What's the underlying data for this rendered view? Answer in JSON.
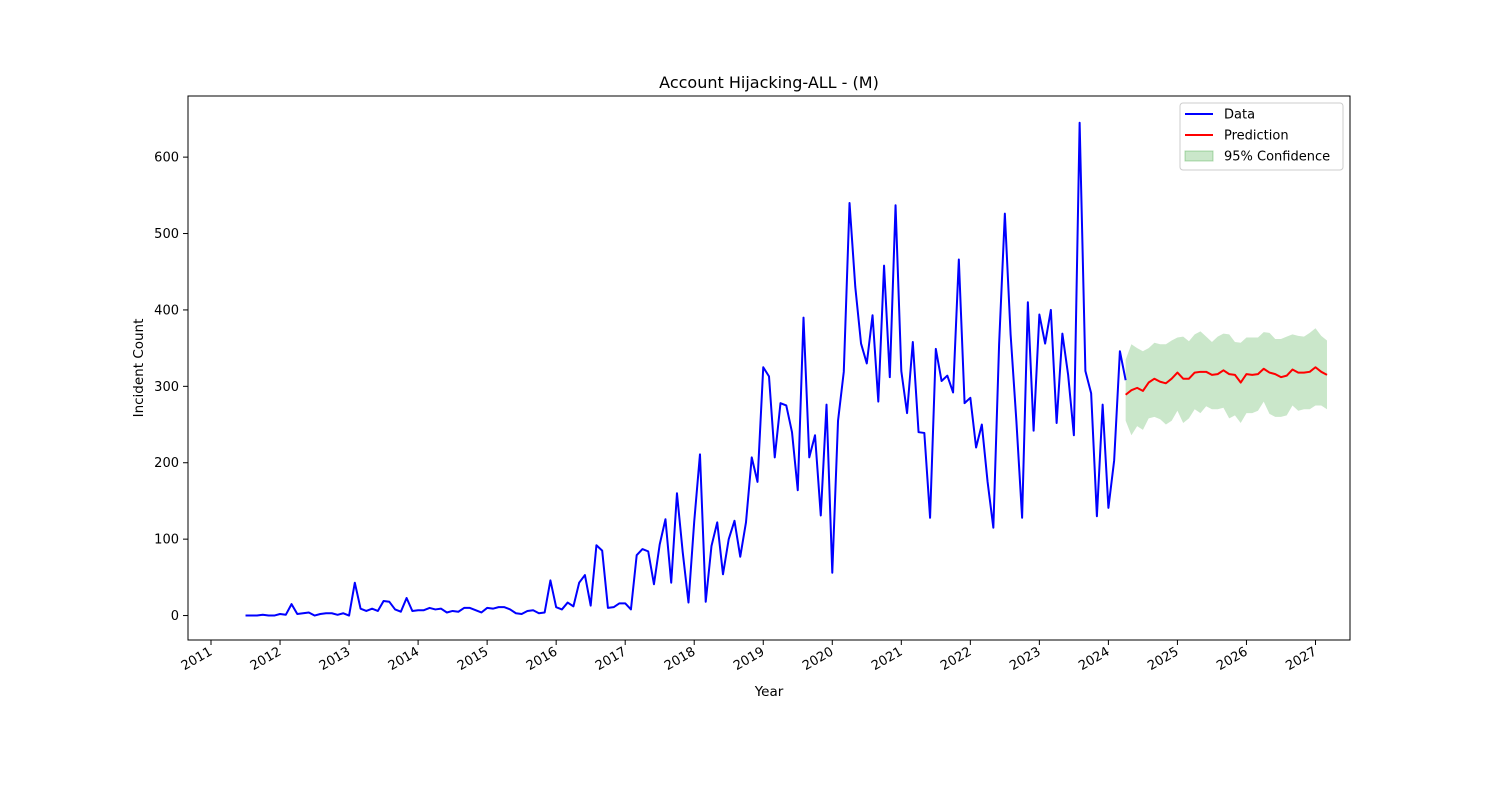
{
  "chart_data": {
    "type": "line",
    "title": "Account Hijacking-ALL - (M)",
    "xlabel": "Year",
    "ylabel": "Incident Count",
    "xlim": [
      "2010-09",
      "2027-07"
    ],
    "ylim": [
      -32,
      680
    ],
    "x_ticks": [
      "2011",
      "2012",
      "2013",
      "2014",
      "2015",
      "2016",
      "2017",
      "2018",
      "2019",
      "2020",
      "2021",
      "2022",
      "2023",
      "2024",
      "2025",
      "2026",
      "2027"
    ],
    "y_ticks": [
      0,
      100,
      200,
      300,
      400,
      500,
      600
    ],
    "legend": {
      "placement": "top-right",
      "entries": [
        {
          "label": "Data",
          "color": "#0000ff",
          "kind": "line"
        },
        {
          "label": "Prediction",
          "color": "#ff0000",
          "kind": "line"
        },
        {
          "label": "95% Confidence",
          "color": "#2ca02c",
          "kind": "patch"
        }
      ]
    },
    "series": [
      {
        "name": "Data",
        "color": "#0000ff",
        "start": "2011-07",
        "values": [
          0,
          0,
          0,
          1,
          0,
          0,
          2,
          1,
          15,
          2,
          3,
          4,
          0,
          2,
          3,
          3,
          1,
          3,
          0,
          43,
          9,
          6,
          9,
          6,
          19,
          18,
          8,
          5,
          23,
          6,
          7,
          7,
          10,
          8,
          9,
          4,
          6,
          5,
          10,
          10,
          7,
          4,
          10,
          9,
          11,
          11,
          8,
          3,
          2,
          6,
          7,
          3,
          4,
          46,
          11,
          8,
          17,
          12,
          43,
          53,
          13,
          92,
          85,
          10,
          11,
          16,
          16,
          8,
          79,
          87,
          84,
          41,
          93,
          126,
          43,
          160,
          83,
          17,
          123,
          211,
          18,
          91,
          122,
          54,
          100,
          124,
          77,
          122,
          207,
          175,
          325,
          313,
          207,
          278,
          275,
          240,
          164,
          390,
          207,
          236,
          131,
          276,
          56,
          255,
          319,
          540,
          430,
          356,
          330,
          393,
          280,
          458,
          312,
          537,
          320,
          265,
          358,
          240,
          239,
          128,
          349,
          307,
          314,
          292,
          466,
          278,
          285,
          220,
          250,
          175,
          115,
          355,
          526,
          368,
          255,
          128,
          410,
          242,
          394,
          356,
          400,
          252,
          369,
          315,
          236,
          645,
          320,
          291,
          130,
          276,
          141,
          203,
          346,
          308
        ]
      },
      {
        "name": "Prediction",
        "color": "#ff0000",
        "start": "2024-04",
        "values": [
          289,
          295,
          298,
          294,
          305,
          310,
          306,
          304,
          310,
          318,
          310,
          310,
          318,
          319,
          319,
          315,
          316,
          321,
          316,
          315,
          305,
          316,
          315,
          316,
          323,
          318,
          316,
          312,
          314,
          322,
          318,
          318,
          319,
          325,
          319,
          315
        ]
      }
    ],
    "confidence_band": {
      "name": "95% Confidence",
      "color": "#2ca02c",
      "start": "2024-04",
      "lower": [
        255,
        236,
        248,
        243,
        258,
        260,
        257,
        250,
        255,
        268,
        252,
        258,
        270,
        265,
        274,
        270,
        270,
        272,
        258,
        262,
        252,
        265,
        265,
        268,
        280,
        264,
        260,
        260,
        262,
        275,
        268,
        270,
        270,
        275,
        275,
        270
      ],
      "upper": [
        335,
        355,
        350,
        346,
        350,
        357,
        355,
        355,
        360,
        364,
        365,
        359,
        368,
        372,
        365,
        358,
        365,
        369,
        368,
        358,
        357,
        364,
        364,
        364,
        371,
        370,
        362,
        362,
        365,
        368,
        366,
        365,
        370,
        376,
        366,
        360
      ]
    }
  }
}
